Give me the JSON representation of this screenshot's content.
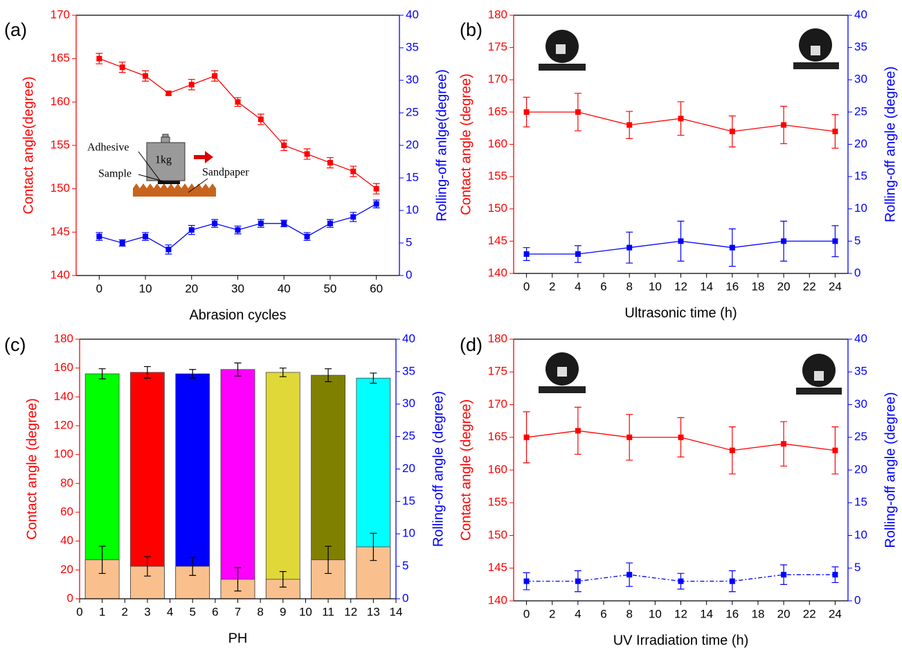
{
  "chart_data": [
    {
      "type": "line",
      "panel_label": "(a)",
      "x_label": "Abrasion cycles",
      "y_label": "Contact angle(degree)",
      "y2_label": "Rolling-off anlge(degree)",
      "x": [
        0,
        5,
        10,
        15,
        20,
        25,
        30,
        35,
        40,
        45,
        50,
        55,
        60
      ],
      "xlim": [
        -5,
        65
      ],
      "xticks": [
        0,
        10,
        20,
        30,
        40,
        50,
        60
      ],
      "ylim": [
        140,
        170
      ],
      "yticks": [
        140,
        145,
        150,
        155,
        160,
        165,
        170
      ],
      "y2lim": [
        0,
        40
      ],
      "y2ticks": [
        0,
        5,
        10,
        15,
        20,
        25,
        30,
        35,
        40
      ],
      "annotations": [
        "Adhesive",
        "1kg",
        "Sample",
        "Sandpaper"
      ],
      "series": [
        {
          "color": "#ff0000",
          "values": [
            165,
            164,
            163,
            161,
            162,
            163,
            160,
            158,
            155,
            154,
            153,
            152,
            150
          ],
          "errors": [
            0.6,
            0.6,
            0.6,
            0.2,
            0.6,
            0.6,
            0.5,
            0.6,
            0.6,
            0.6,
            0.6,
            0.6,
            0.6
          ]
        },
        {
          "color": "#0000ff",
          "axis": "y2",
          "values": [
            6,
            5,
            6,
            4,
            7,
            8,
            7,
            8,
            8,
            6,
            8,
            9,
            11
          ],
          "errors": [
            0.6,
            0.5,
            0.6,
            0.7,
            0.7,
            0.6,
            0.6,
            0.6,
            0.5,
            0.6,
            0.6,
            0.7,
            0.6
          ]
        }
      ]
    },
    {
      "type": "line",
      "panel_label": "(b)",
      "x_label": "Ultrasonic time (h)",
      "y_label": "Contact angle (degree)",
      "y2_label": "Rolling-off angle (degree)",
      "x": [
        0,
        4,
        8,
        12,
        16,
        20,
        24
      ],
      "xlim": [
        -1,
        25
      ],
      "xticks": [
        0,
        2,
        4,
        6,
        8,
        10,
        12,
        14,
        16,
        18,
        20,
        22,
        24
      ],
      "ylim": [
        140,
        180
      ],
      "yticks": [
        140,
        145,
        150,
        155,
        160,
        165,
        170,
        175,
        180
      ],
      "y2lim": [
        0,
        40
      ],
      "y2ticks": [
        0,
        5,
        10,
        15,
        20,
        25,
        30,
        35,
        40
      ],
      "series": [
        {
          "color": "#ff0000",
          "values": [
            165,
            165,
            163,
            164,
            162,
            163,
            162
          ],
          "errors": [
            2.3,
            2.9,
            2.1,
            2.6,
            2.4,
            2.9,
            2.6
          ]
        },
        {
          "color": "#0000ff",
          "axis": "y2",
          "values": [
            3,
            3,
            4,
            5,
            4,
            5,
            5
          ],
          "errors": [
            1,
            1.3,
            2.4,
            3.1,
            2.9,
            3.1,
            2.4
          ]
        }
      ]
    },
    {
      "type": "bar",
      "panel_label": "(c)",
      "x_label": "PH",
      "y_label": "Contact angle (degree)",
      "y2_label": "Rolling-off angle (degree)",
      "x": [
        1,
        3,
        5,
        7,
        9,
        11,
        13
      ],
      "xlim": [
        0,
        14
      ],
      "xticks": [
        0,
        1,
        2,
        3,
        4,
        5,
        6,
        7,
        8,
        9,
        10,
        11,
        12,
        13,
        14
      ],
      "ylim": [
        0,
        180
      ],
      "yticks": [
        0,
        20,
        40,
        60,
        80,
        100,
        120,
        140,
        160,
        180
      ],
      "y2lim": [
        0,
        40
      ],
      "y2ticks": [
        0,
        5,
        10,
        15,
        20,
        25,
        30,
        35,
        40
      ],
      "series": [
        {
          "colors": [
            "#00ff00",
            "#ff0000",
            "#0000ff",
            "#ff00ff",
            "#e0d838",
            "#808000",
            "#00ffff"
          ],
          "values": [
            156,
            157,
            156,
            159,
            157,
            155,
            153
          ],
          "errors": [
            3.5,
            4,
            3,
            4.5,
            3,
            4.5,
            3.5
          ]
        },
        {
          "color": "#f9c08d",
          "axis": "y2",
          "values": [
            6,
            5,
            5,
            3,
            3,
            6,
            8
          ],
          "errors": [
            2.1,
            1.5,
            1.4,
            1.8,
            1.2,
            2.1,
            2.1
          ]
        }
      ]
    },
    {
      "type": "line",
      "panel_label": "(d)",
      "x_label": "UV Irradiation time (h)",
      "y_label": "Contact angle (degree)",
      "y2_label": "Rolling-off angle (degree)",
      "x": [
        0,
        4,
        8,
        12,
        16,
        20,
        24
      ],
      "xlim": [
        -1,
        25
      ],
      "xticks": [
        0,
        2,
        4,
        6,
        8,
        10,
        12,
        14,
        16,
        18,
        20,
        22,
        24
      ],
      "ylim": [
        140,
        180
      ],
      "yticks": [
        140,
        145,
        150,
        155,
        160,
        165,
        170,
        175,
        180
      ],
      "y2lim": [
        0,
        40
      ],
      "y2ticks": [
        0,
        5,
        10,
        15,
        20,
        25,
        30,
        35,
        40
      ],
      "series": [
        {
          "color": "#ff0000",
          "values": [
            165,
            166,
            165,
            165,
            163,
            164,
            163
          ],
          "errors": [
            3.9,
            3.6,
            3.5,
            3,
            3.6,
            3.4,
            3.6
          ]
        },
        {
          "color": "#0000ff",
          "axis": "y2",
          "line_style": "dash-dot",
          "values": [
            3,
            3,
            4,
            3,
            3,
            4,
            4
          ],
          "errors": [
            1.3,
            1.6,
            1.8,
            1.2,
            1.6,
            1.5,
            1.2
          ]
        }
      ]
    }
  ]
}
